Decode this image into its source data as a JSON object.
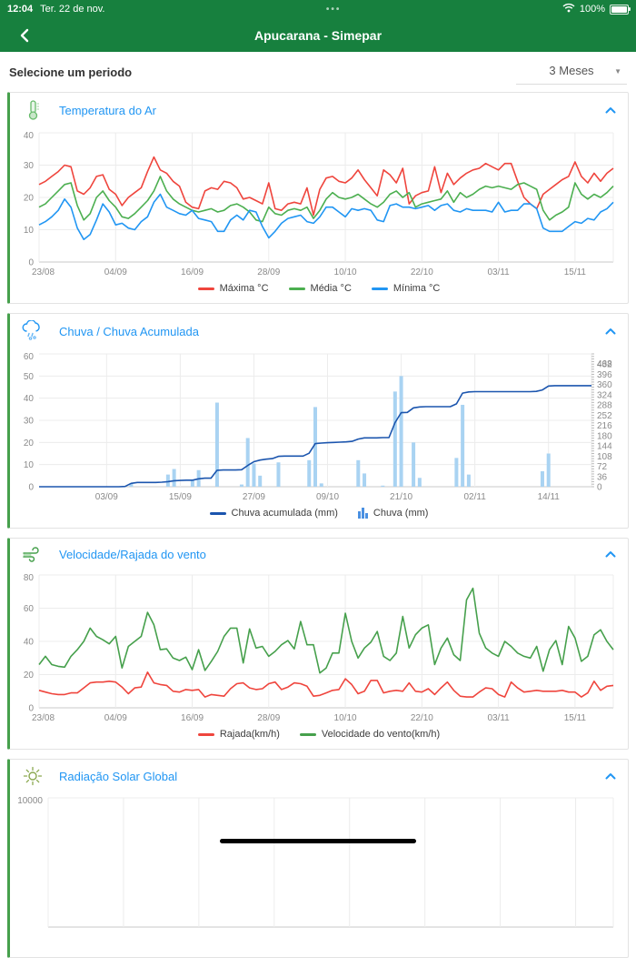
{
  "status_bar": {
    "time": "12:04",
    "date": "Ter. 22 de nov.",
    "menu_dots": "•••",
    "battery_percent": "100%"
  },
  "nav": {
    "title": "Apucarana - Simepar"
  },
  "period": {
    "label": "Selecione um periodo",
    "value": "3 Meses"
  },
  "colors": {
    "header_green": "#17803E",
    "card_stripe_green": "#46a04c",
    "title_blue": "#2196F3",
    "max_red": "#EF453D",
    "mean_green": "#4CAF50",
    "min_blue": "#2196F3",
    "rain_bar": "#A9D3F2",
    "rain_accum": "#1B55AE",
    "gust_red": "#EF453D",
    "wind_green": "#46A04C"
  },
  "chart_data": [
    {
      "type": "line",
      "title": "Temperatura do Ar",
      "n": 91,
      "ymax": 40,
      "yticks": [
        0,
        10,
        20,
        30,
        40
      ],
      "x_ticks": [
        {
          "i": 0,
          "label": "23/08"
        },
        {
          "i": 12,
          "label": "04/09"
        },
        {
          "i": 24,
          "label": "16/09"
        },
        {
          "i": 36,
          "label": "28/09"
        },
        {
          "i": 48,
          "label": "10/10"
        },
        {
          "i": 60,
          "label": "22/10"
        },
        {
          "i": 72,
          "label": "03/11"
        },
        {
          "i": 84,
          "label": "15/11"
        }
      ],
      "series": [
        {
          "name": "Máxima °C",
          "color": "#EF453D",
          "values": [
            24,
            25,
            26.5,
            28,
            30,
            29.5,
            22,
            21,
            23,
            26.5,
            27,
            22.5,
            21,
            17.5,
            20,
            21.5,
            23,
            28,
            32.5,
            28.5,
            27.5,
            25,
            23.5,
            18.5,
            17,
            16.5,
            22,
            23,
            22.5,
            25,
            24.5,
            23,
            19.5,
            20,
            19,
            18,
            24.5,
            16.5,
            16,
            18,
            18.5,
            18,
            23,
            14.5,
            22.5,
            26,
            26.5,
            25,
            24.5,
            26,
            28.5,
            25.5,
            23,
            20.5,
            28.5,
            27,
            24.5,
            29,
            18,
            20.5,
            21.5,
            22,
            29.5,
            21.5,
            27.5,
            24,
            26,
            27.5,
            28.5,
            29,
            30.5,
            29.5,
            28.5,
            30.5,
            30.5,
            25,
            20,
            18,
            16.5,
            21,
            22.5,
            24,
            25.5,
            26.5,
            31,
            26.5,
            24.5,
            27.5,
            25,
            27.5,
            29
          ]
        },
        {
          "name": "Média °C",
          "color": "#4CAF50",
          "values": [
            17,
            18,
            20,
            22,
            24,
            24.5,
            17.5,
            13,
            15,
            20,
            22,
            19,
            17,
            14,
            13.5,
            15,
            17,
            19,
            22,
            26.5,
            22,
            19.5,
            18,
            17,
            16,
            15.5,
            16,
            16.5,
            15.5,
            16,
            17.5,
            18,
            17,
            15.5,
            13,
            12.5,
            17,
            15,
            14.5,
            16,
            16.5,
            16,
            17,
            13.5,
            16,
            19.5,
            21.5,
            20,
            19.5,
            20,
            21,
            19.5,
            18,
            17,
            18.5,
            21,
            22,
            20,
            21.5,
            17,
            18,
            18.5,
            19,
            19.5,
            22,
            18.5,
            21.5,
            20,
            21,
            22.5,
            23.5,
            23,
            23.5,
            23,
            22.5,
            24,
            24.5,
            23.5,
            22.5,
            16,
            13,
            14.5,
            15.5,
            17,
            24.5,
            21,
            19.5,
            21,
            20,
            21.5,
            23.5
          ]
        },
        {
          "name": "Mínima °C",
          "color": "#2196F3",
          "values": [
            11.5,
            12.5,
            14,
            16,
            19.5,
            17,
            10.5,
            7,
            8.5,
            13,
            18,
            15.5,
            11.5,
            12,
            10.5,
            10,
            12.5,
            14,
            18.5,
            21,
            17,
            16,
            15,
            14.5,
            16,
            13.5,
            13,
            12.5,
            9.5,
            9.5,
            13,
            14.5,
            13,
            16,
            15.5,
            11,
            7.5,
            9.5,
            12,
            13.5,
            14,
            14.5,
            12.5,
            12,
            14,
            17,
            17,
            15.5,
            14,
            16.5,
            16,
            16.5,
            16,
            13,
            12.5,
            17.5,
            18,
            17,
            17,
            16.5,
            17,
            17.5,
            16,
            17.5,
            18,
            16,
            15.5,
            16.5,
            16,
            16,
            16,
            15.5,
            18.5,
            15.5,
            16,
            16,
            18,
            18,
            16.5,
            10.5,
            9.5,
            9.5,
            9.5,
            11,
            12.5,
            12,
            13.5,
            13,
            15.5,
            16.5,
            18.5
          ]
        }
      ],
      "legend": [
        {
          "label": "Máxima °C",
          "color": "#EF453D",
          "glyph": "line"
        },
        {
          "label": "Média °C",
          "color": "#4CAF50",
          "glyph": "line"
        },
        {
          "label": "Mínima °C",
          "color": "#2196F3",
          "glyph": "line"
        }
      ]
    },
    {
      "type": "bar+line",
      "title": "Chuva / Chuva Acumulada",
      "n": 91,
      "ymax": 60,
      "yticks": [
        0,
        10,
        20,
        30,
        40,
        50,
        60
      ],
      "y2max": 468,
      "y2ticks": [
        0,
        36,
        72,
        108,
        144,
        180,
        216,
        252,
        288,
        324,
        360,
        396,
        432,
        468
      ],
      "y2minor_step": 9,
      "x_ticks": [
        {
          "i": 11,
          "label": "03/09"
        },
        {
          "i": 23,
          "label": "15/09"
        },
        {
          "i": 35,
          "label": "27/09"
        },
        {
          "i": 47,
          "label": "09/10"
        },
        {
          "i": 59,
          "label": "21/10"
        },
        {
          "i": 71,
          "label": "02/11"
        },
        {
          "i": 83,
          "label": "14/11"
        }
      ],
      "bars": [
        0,
        0,
        0,
        0,
        0,
        0,
        0,
        0,
        0,
        0,
        0,
        0,
        0,
        0,
        0,
        1.5,
        0,
        0,
        0,
        0,
        0,
        5.5,
        8,
        0,
        0,
        3,
        7.5,
        0,
        0,
        38,
        0,
        0,
        0,
        1,
        22,
        10.5,
        5,
        0,
        0,
        11,
        0,
        0,
        0,
        0,
        12,
        36,
        1.5,
        0,
        0,
        0,
        0,
        0,
        12,
        6,
        0,
        0,
        0.5,
        0,
        43,
        50,
        0,
        20,
        4,
        0,
        0,
        0,
        0,
        0,
        13,
        37,
        5.5,
        0,
        0,
        0,
        0,
        0,
        0,
        0,
        0,
        0,
        0,
        0,
        7,
        15,
        0,
        0,
        0,
        0,
        0,
        0,
        0
      ],
      "bar_color": "#A9D3F2",
      "series": [
        {
          "name": "Chuva acumulada (mm)",
          "color": "#1B55AE",
          "axis": 2,
          "values": [
            0,
            0,
            0,
            0,
            0,
            0,
            0,
            0,
            0,
            0,
            0,
            0,
            0,
            0,
            1,
            12,
            15,
            15,
            15,
            15,
            16,
            18,
            21,
            22,
            23,
            23,
            28,
            30,
            30,
            58,
            59,
            59,
            59,
            60,
            75,
            88,
            94,
            97,
            99,
            107,
            108,
            108,
            108,
            108,
            118,
            152,
            154,
            155,
            156,
            157,
            158,
            160,
            168,
            172,
            172,
            172,
            173,
            173,
            226,
            261,
            262,
            278,
            281,
            282,
            282,
            282,
            282,
            282,
            292,
            330,
            334,
            335,
            335,
            335,
            335,
            335,
            335,
            335,
            335,
            335,
            335,
            336,
            341,
            355,
            356,
            356,
            356,
            356,
            356,
            356,
            356
          ]
        }
      ],
      "legend": [
        {
          "label": "Chuva acumulada (mm)",
          "color": "#1B55AE",
          "glyph": "line"
        },
        {
          "label": "Chuva (mm)",
          "color": "#4a90e2",
          "glyph": "bars"
        }
      ]
    },
    {
      "type": "line",
      "title": "Velocidade/Rajada do vento",
      "n": 91,
      "ymax": 80,
      "yticks": [
        0,
        20,
        40,
        60,
        80
      ],
      "x_ticks": [
        {
          "i": 0,
          "label": "23/08"
        },
        {
          "i": 12,
          "label": "04/09"
        },
        {
          "i": 24,
          "label": "16/09"
        },
        {
          "i": 36,
          "label": "28/09"
        },
        {
          "i": 48,
          "label": "10/10"
        },
        {
          "i": 60,
          "label": "22/10"
        },
        {
          "i": 72,
          "label": "03/11"
        },
        {
          "i": 84,
          "label": "15/11"
        }
      ],
      "series": [
        {
          "name": "Rajada(km/h)",
          "color": "#EF453D",
          "values": [
            10.5,
            9.5,
            8.5,
            8,
            8,
            9,
            9,
            12,
            15,
            15.5,
            15.5,
            16,
            15.5,
            12.5,
            8.5,
            12,
            12.5,
            21.5,
            15,
            14,
            13.5,
            10,
            9.5,
            11,
            10.5,
            11,
            6.5,
            8,
            7.5,
            7,
            11.5,
            14.5,
            15,
            12,
            11,
            11.5,
            14.5,
            15.5,
            11,
            12.5,
            15,
            14.5,
            13,
            7,
            7.5,
            9,
            10.5,
            11,
            17.5,
            14,
            8.5,
            10,
            16.5,
            16.5,
            9,
            10,
            10.5,
            10,
            15,
            10,
            9.5,
            11.5,
            8,
            12,
            15.5,
            10.5,
            7,
            6.5,
            6.5,
            9.5,
            12,
            11.5,
            8,
            6.5,
            15.5,
            12,
            9.5,
            10,
            10.5,
            10,
            10,
            10,
            10.5,
            9.5,
            9.5,
            6.5,
            9,
            16,
            10.5,
            13,
            13.5
          ]
        },
        {
          "name": "Velocidade do vento(km/h)",
          "color": "#46A04C",
          "values": [
            26,
            31,
            26,
            25,
            24.5,
            31,
            35,
            40,
            48,
            43,
            41,
            38.5,
            43,
            24,
            37,
            40,
            43,
            57.5,
            50,
            35,
            35.5,
            30,
            28.5,
            30.5,
            23,
            35,
            22.5,
            28,
            34,
            43,
            48,
            48,
            27,
            47.5,
            36,
            37,
            31,
            34,
            38,
            40.5,
            35.5,
            52,
            38,
            38,
            21,
            24,
            33,
            33,
            57,
            40,
            30,
            36,
            39.5,
            46,
            31,
            28.5,
            33,
            55,
            36,
            44,
            48,
            50,
            26,
            36,
            42,
            32,
            28.5,
            65,
            72,
            45,
            36,
            33,
            31,
            40,
            37,
            33,
            31,
            30,
            37,
            22,
            35,
            40.5,
            26,
            49,
            42,
            28,
            31,
            44,
            47,
            40,
            35
          ]
        }
      ],
      "legend": [
        {
          "label": "Rajada(km/h)",
          "color": "#EF453D",
          "glyph": "line"
        },
        {
          "label": "Velocidade do vento(km/h)",
          "color": "#46A04C",
          "glyph": "line"
        }
      ]
    },
    {
      "type": "line",
      "title": "Radiação Solar Global",
      "n": 91,
      "ymax": 10000,
      "yticks": [
        10000
      ],
      "x_ticks": [
        {
          "i": 0,
          "label": ""
        },
        {
          "i": 12,
          "label": ""
        },
        {
          "i": 24,
          "label": ""
        },
        {
          "i": 36,
          "label": ""
        },
        {
          "i": 48,
          "label": ""
        },
        {
          "i": 60,
          "label": ""
        },
        {
          "i": 72,
          "label": ""
        },
        {
          "i": 84,
          "label": ""
        }
      ],
      "series": [],
      "legend": [],
      "clipped": true
    }
  ]
}
